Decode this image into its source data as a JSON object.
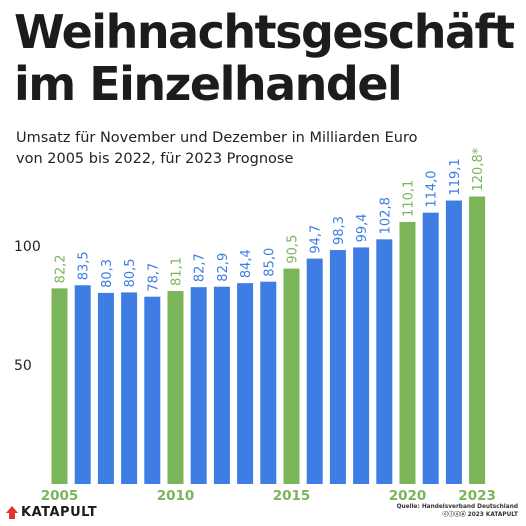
{
  "title_lines": [
    "Weihnachtsgeschäft",
    "im Einzelhandel"
  ],
  "subtitle_lines": [
    "Umsatz für November und Dezember in Milliarden Euro",
    "von 2005 bis 2022, für 2023 Prognose"
  ],
  "chart_data": {
    "type": "bar",
    "title": "Weihnachtsgeschäft im Einzelhandel",
    "subtitle": "Umsatz für November und Dezember in Milliarden Euro von 2005 bis 2022, für 2023 Prognose",
    "categories": [
      "2005",
      "2006",
      "2007",
      "2008",
      "2009",
      "2010",
      "2011",
      "2012",
      "2013",
      "2014",
      "2015",
      "2016",
      "2017",
      "2018",
      "2019",
      "2020",
      "2021",
      "2022",
      "2023"
    ],
    "values": [
      82.2,
      83.5,
      80.3,
      80.5,
      78.7,
      81.1,
      82.7,
      82.9,
      84.4,
      85.0,
      90.5,
      94.7,
      98.3,
      99.4,
      102.8,
      110.1,
      114.0,
      119.1,
      120.8
    ],
    "value_labels": [
      "82,2",
      "83,5",
      "80,3",
      "80,5",
      "78,7",
      "81,1",
      "82,7",
      "82,9",
      "84,4",
      "85,0",
      "90,5",
      "94,7",
      "98,3",
      "99,4",
      "102,8",
      "110,1",
      "114,0",
      "119,1",
      "120,8*"
    ],
    "highlight": [
      true,
      false,
      false,
      false,
      false,
      true,
      false,
      false,
      false,
      false,
      true,
      false,
      false,
      false,
      false,
      true,
      false,
      false,
      true
    ],
    "x_tick_labels": [
      {
        "index": 0,
        "label": "2005"
      },
      {
        "index": 5,
        "label": "2010"
      },
      {
        "index": 10,
        "label": "2015"
      },
      {
        "index": 15,
        "label": "2020"
      },
      {
        "index": 18,
        "label": "2023"
      }
    ],
    "y_ticks": [
      50,
      100
    ],
    "y_tick_labels": [
      "50",
      "100"
    ],
    "ylim": [
      0,
      125
    ],
    "xlabel": "",
    "ylabel": "",
    "grid": false,
    "colors": {
      "highlight": "#7ab559",
      "normal": "#3d7de4"
    }
  },
  "logo_text": "KATAPULT",
  "source_lines": [
    "Quelle: Handelsverband Deutschland",
    "ⓒⓘⓢⓐ 2023 KATAPULT"
  ]
}
